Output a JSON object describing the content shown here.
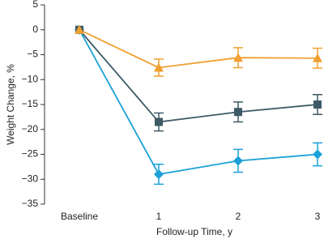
{
  "chart_data": {
    "type": "line",
    "x_label": "Follow-up Time, y",
    "y_label": "Weight Change, %",
    "categories": [
      "Baseline",
      "1",
      "2",
      "3"
    ],
    "series": [
      {
        "color": "#f0a030",
        "marker": "triangle",
        "values": [
          0,
          -7.6,
          -5.6,
          -5.7
        ],
        "errors": [
          null,
          1.7,
          2,
          2
        ]
      },
      {
        "color": "#3d5a66",
        "marker": "square",
        "values": [
          0,
          -18.5,
          -16.5,
          -15
        ],
        "errors": [
          null,
          1.8,
          2,
          2
        ]
      },
      {
        "color": "#1ba1d8",
        "marker": "diamond",
        "values": [
          0,
          -29,
          -26.3,
          -25
        ],
        "errors": [
          null,
          2,
          2.3,
          2.3
        ]
      }
    ],
    "ylim": [
      -35,
      5
    ],
    "yticks": [
      {
        "value": -35,
        "label": "−35"
      },
      {
        "value": -30,
        "label": "−30"
      },
      {
        "value": -25,
        "label": "−25"
      },
      {
        "value": -20,
        "label": "−20"
      },
      {
        "value": -15,
        "label": "−15"
      },
      {
        "value": -10,
        "label": "−10"
      },
      {
        "value": -5,
        "label": "−5"
      },
      0,
      5
    ],
    "grid": false
  }
}
